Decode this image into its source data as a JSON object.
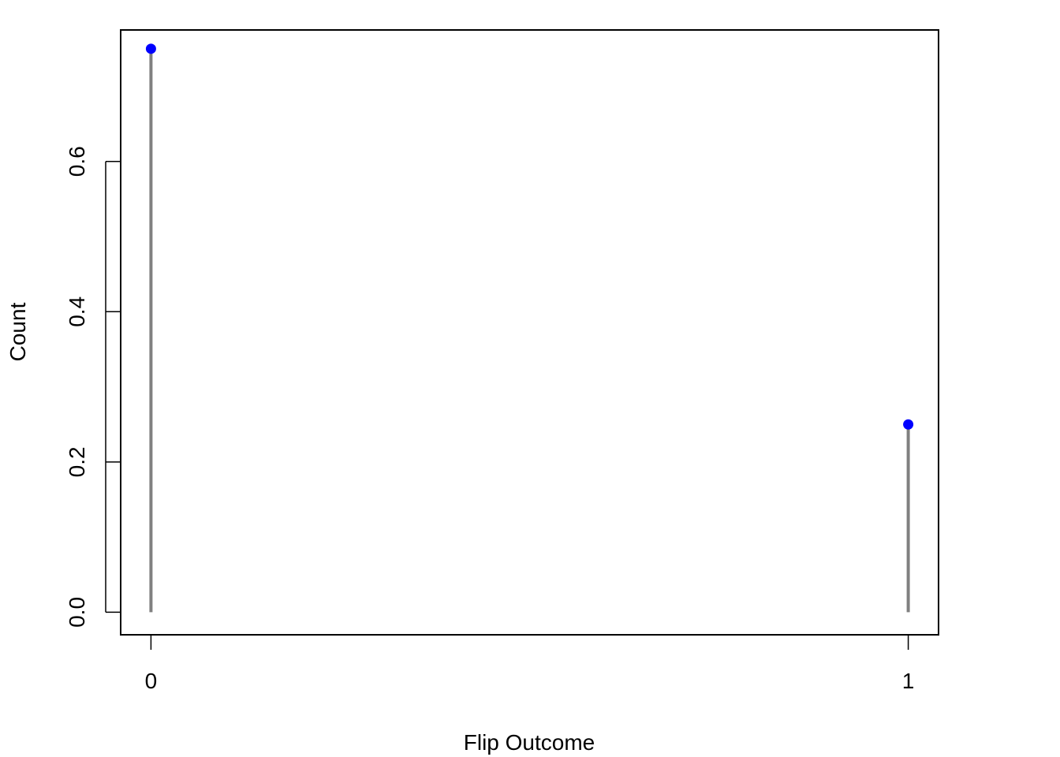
{
  "chart_data": {
    "type": "lollipop",
    "title": "",
    "xlabel": "Flip Outcome",
    "ylabel": "Count",
    "x_ticks": [
      "0",
      "1"
    ],
    "y_ticks": [
      "0.0",
      "0.2",
      "0.4",
      "0.6"
    ],
    "points": [
      {
        "x": 0,
        "y": 0.75
      },
      {
        "x": 1,
        "y": 0.25
      }
    ],
    "xlim": [
      -0.04,
      1.04
    ],
    "ylim": [
      -0.03,
      0.775
    ],
    "grid": false,
    "colors": {
      "point": "#0000ff",
      "stem": "#808080",
      "axis": "#000000"
    }
  }
}
